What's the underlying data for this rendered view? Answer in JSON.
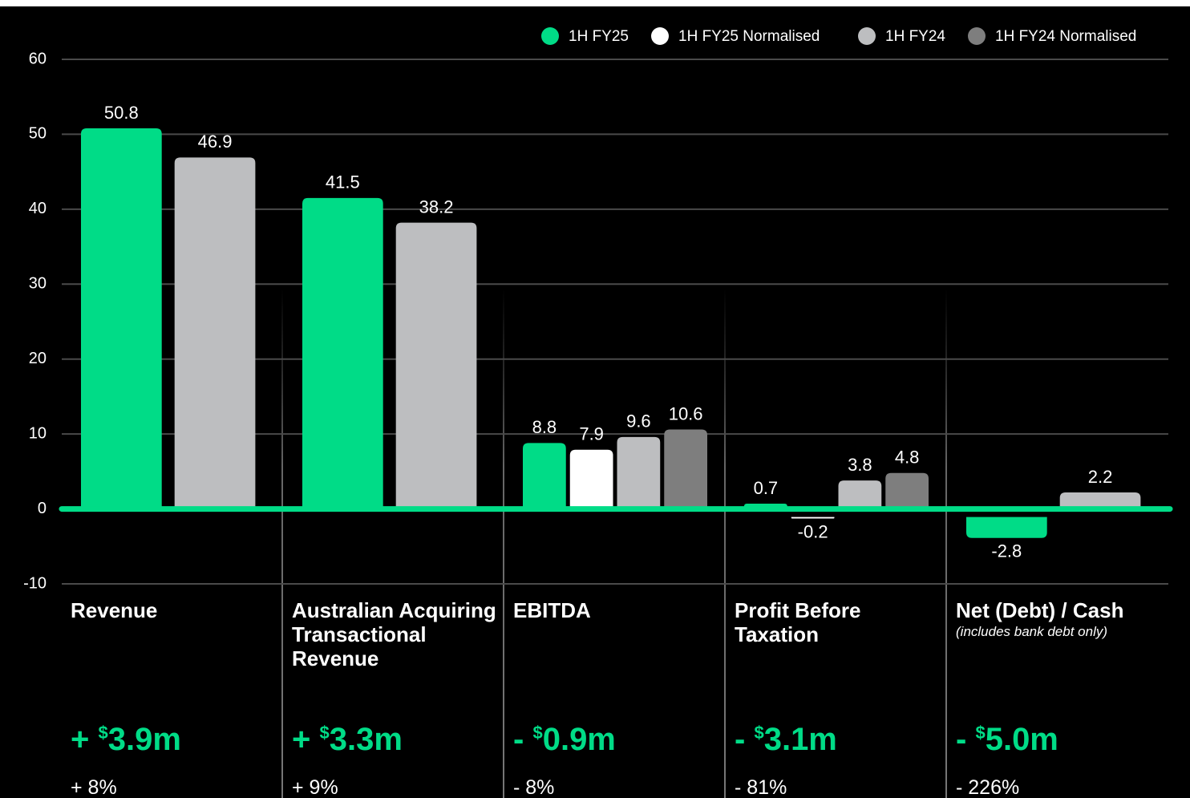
{
  "chart_data": {
    "type": "bar",
    "categories": [
      "Revenue",
      "Australian Acquiring Transactional Revenue",
      "EBITDA",
      "Profit Before Taxation",
      "Net (Debt) / Cash"
    ],
    "series": [
      {
        "name": "1H FY25",
        "color": "#00dc87",
        "values": [
          50.8,
          41.5,
          8.8,
          0.7,
          -2.8
        ]
      },
      {
        "name": "1H FY25 Normalised",
        "color": "#ffffff",
        "values": [
          null,
          null,
          7.9,
          -0.2,
          null
        ]
      },
      {
        "name": "1H FY24",
        "color": "#bdbec0",
        "values": [
          46.9,
          38.2,
          9.6,
          3.8,
          2.2
        ]
      },
      {
        "name": "1H FY24 Normalised",
        "color": "#7e7e7e",
        "values": [
          null,
          null,
          10.6,
          4.8,
          null
        ]
      }
    ],
    "ylim": [
      -10,
      60
    ],
    "yticks": [
      -10,
      0,
      10,
      20,
      30,
      40,
      50,
      60
    ],
    "grid": true,
    "legend": "top-right",
    "category_details": [
      {
        "note": null,
        "change": {
          "sign": "+",
          "currency": "$",
          "amount": "3.9m"
        },
        "percent": "+ 8%"
      },
      {
        "note": null,
        "change": {
          "sign": "+",
          "currency": "$",
          "amount": "3.3m"
        },
        "percent": "+ 9%"
      },
      {
        "note": null,
        "change": {
          "sign": "-",
          "currency": "$",
          "amount": "0.9m"
        },
        "percent": "- 8%"
      },
      {
        "note": null,
        "change": {
          "sign": "-",
          "currency": "$",
          "amount": "3.1m"
        },
        "percent": "- 81%"
      },
      {
        "note": "(includes bank debt only)",
        "change": {
          "sign": "-",
          "currency": "$",
          "amount": "5.0m"
        },
        "percent": "- 226%"
      }
    ]
  }
}
